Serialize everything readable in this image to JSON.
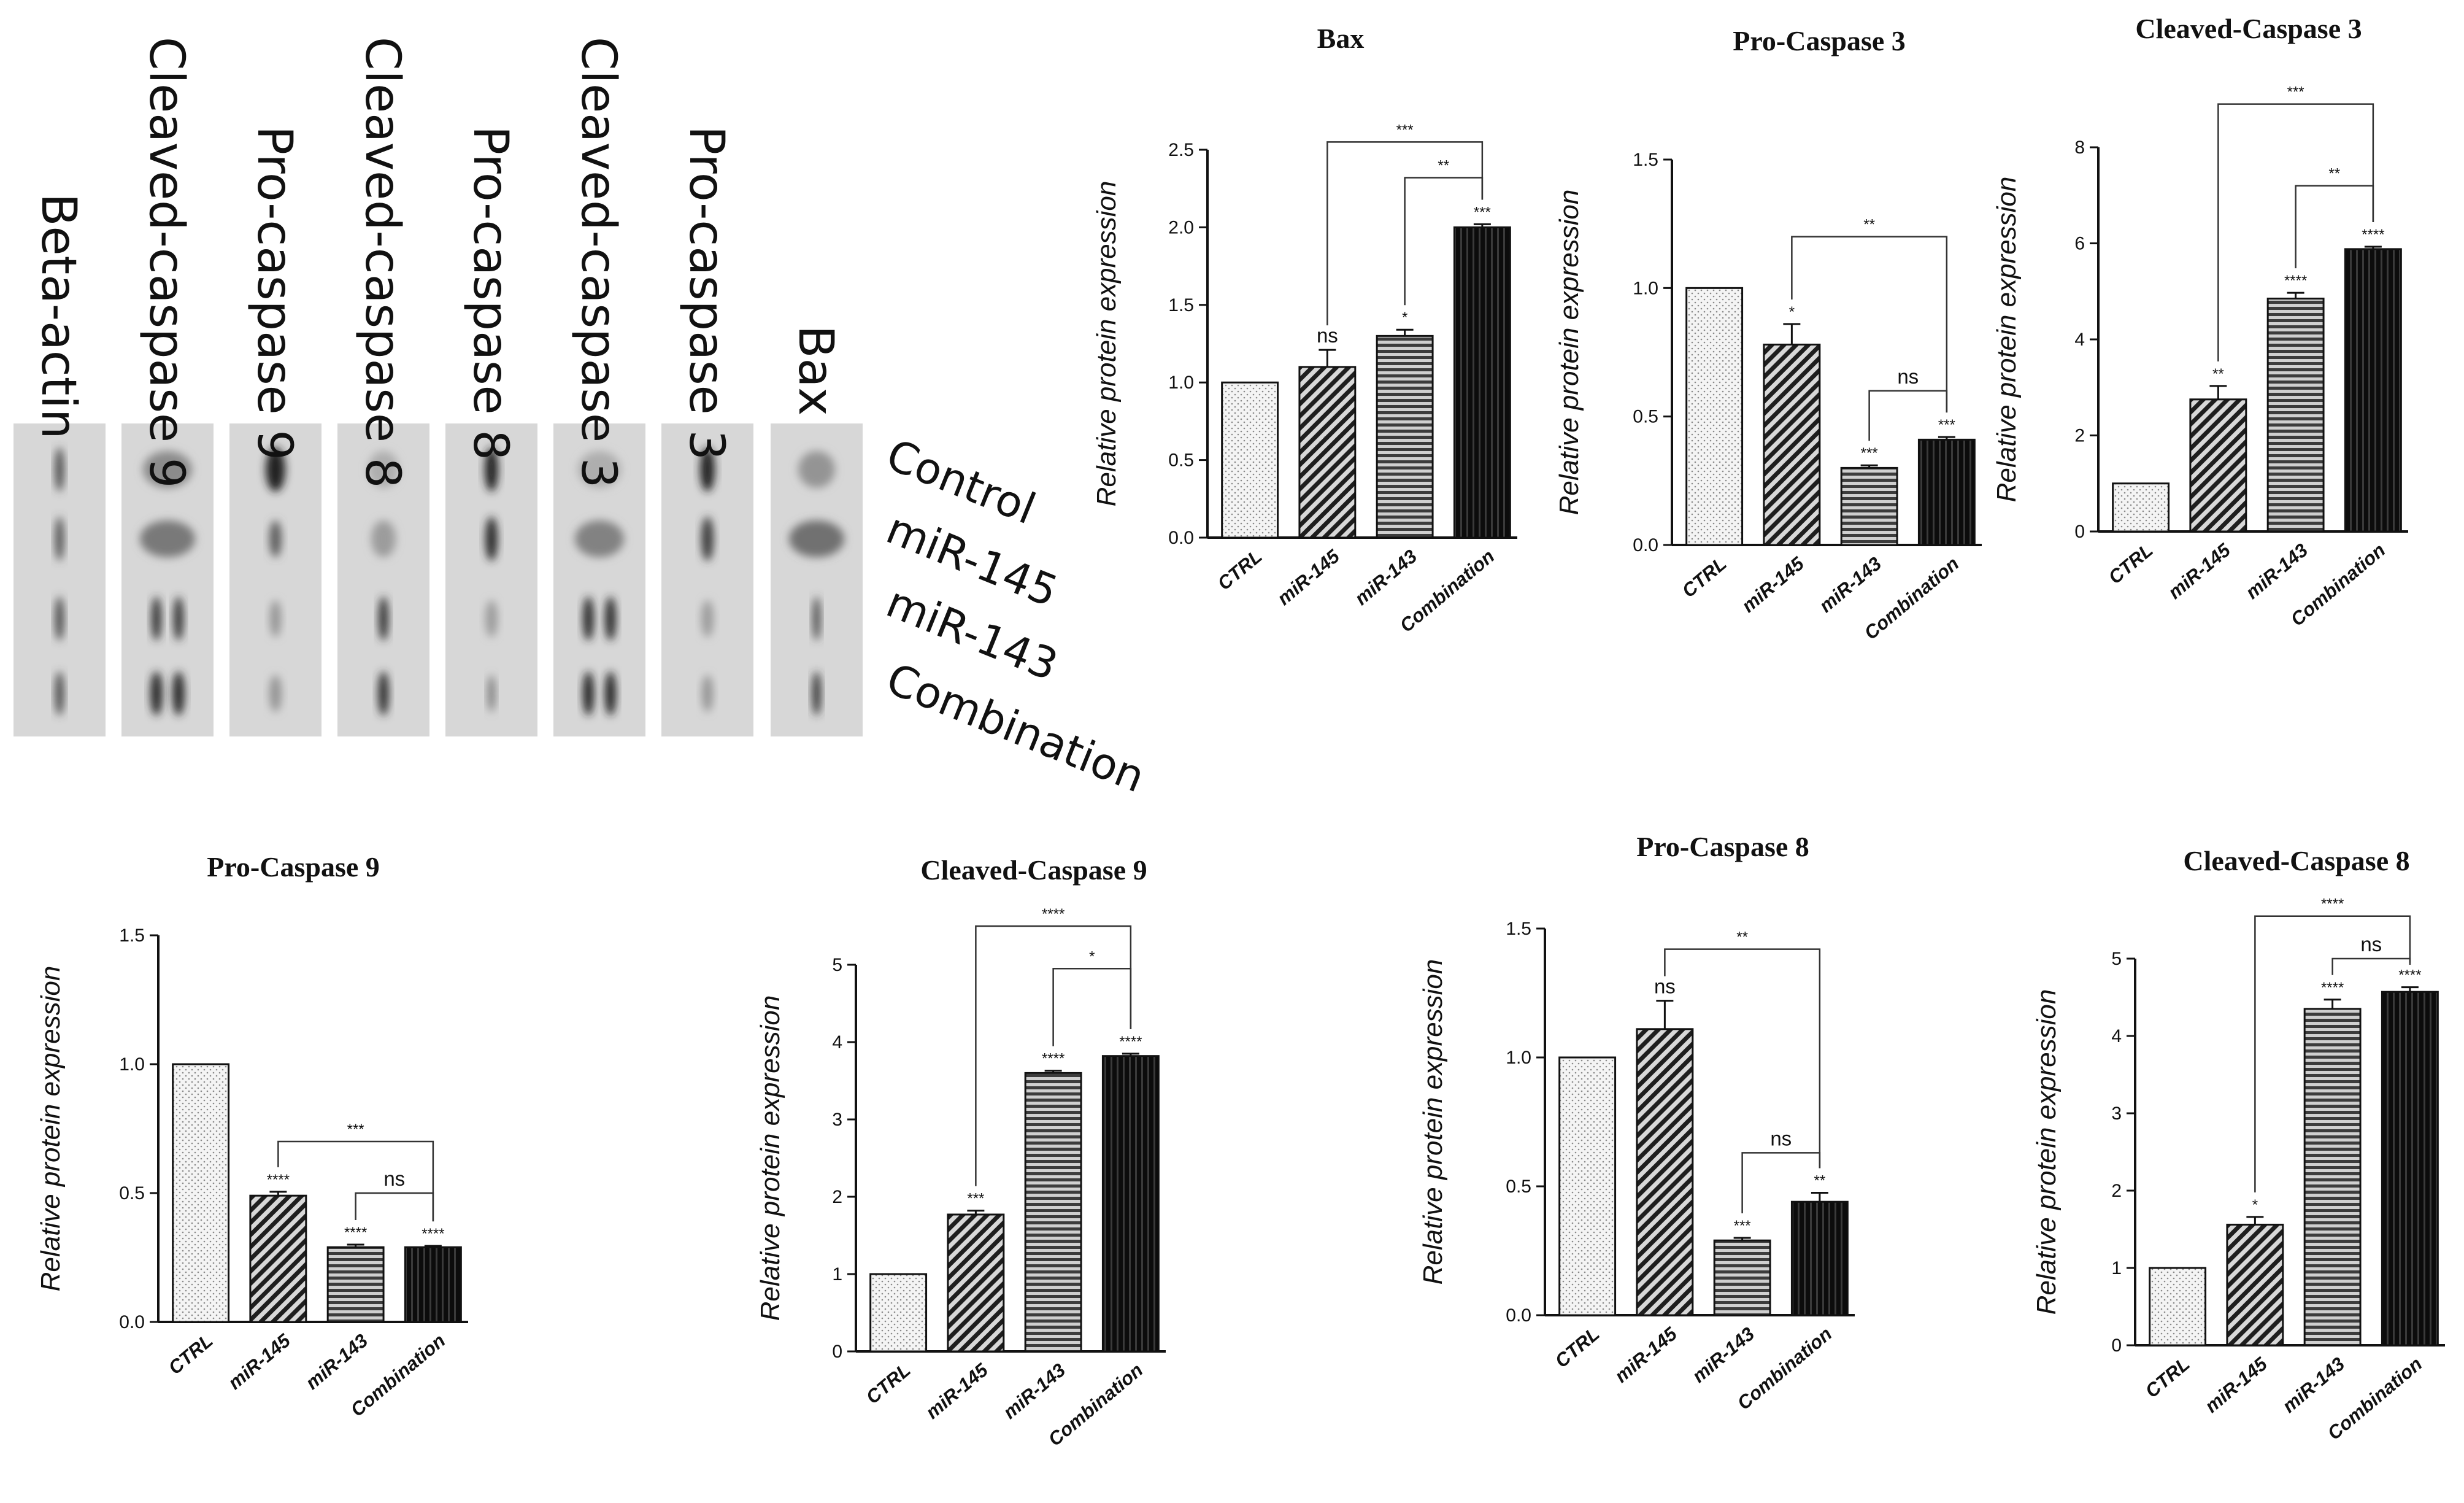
{
  "blot": {
    "columns": [
      "Beta-actin",
      "Cleaved-caspase 9",
      "Pro-caspase 9",
      "Cleaved-caspase 8",
      "Pro-caspase 8",
      "Cleaved-caspase 3",
      "Pro-caspase 3",
      "Bax"
    ],
    "rows": [
      "Control",
      "miR-145",
      "miR-143",
      "Combination"
    ]
  },
  "colors": {
    "ctrl": "#f2f2f2",
    "mir145": "#2f2f2f",
    "mir143": "#6a6a6a",
    "combo": "#0e0e0e",
    "blot_bg": "#d7d7d7"
  },
  "chart_data": [
    {
      "type": "bar",
      "title": "Bax",
      "categories": [
        "CTRL",
        "miR-145",
        "miR-143",
        "Combination"
      ],
      "values": [
        1.0,
        1.1,
        1.3,
        2.0
      ],
      "errors": [
        0,
        0.11,
        0.04,
        0.02
      ],
      "ylim": [
        0,
        2.5
      ],
      "yticks": [
        0.0,
        0.5,
        1.0,
        1.5,
        2.0,
        2.5
      ],
      "ytick_labels": [
        "0.0",
        "0.5",
        "1.0",
        "1.5",
        "2.0",
        "2.5"
      ],
      "ylabel": "Relative protein expression",
      "bar_sig": [
        "",
        "ns",
        "*",
        "***"
      ],
      "brackets": [
        {
          "from": 1,
          "to": 3,
          "label": "***",
          "y": 2.55
        },
        {
          "from": 2,
          "to": 3,
          "label": "**",
          "y": 2.32
        }
      ]
    },
    {
      "type": "bar",
      "title": "Pro-Caspase 3",
      "categories": [
        "CTRL",
        "miR-145",
        "miR-143",
        "Combination"
      ],
      "values": [
        1.0,
        0.78,
        0.3,
        0.41
      ],
      "errors": [
        0,
        0.08,
        0.01,
        0.01
      ],
      "ylim": [
        0,
        1.5
      ],
      "yticks": [
        0.0,
        0.5,
        1.0,
        1.5
      ],
      "ytick_labels": [
        "0.0",
        "0.5",
        "1.0",
        "1.5"
      ],
      "ylabel": "Relative protein expression",
      "bar_sig": [
        "",
        "*",
        "***",
        "***"
      ],
      "brackets": [
        {
          "from": 1,
          "to": 3,
          "label": "**",
          "y": 1.2
        },
        {
          "from": 2,
          "to": 3,
          "label": "ns",
          "y": 0.6
        }
      ]
    },
    {
      "type": "bar",
      "title": "Cleaved-Caspase 3",
      "categories": [
        "CTRL",
        "miR-145",
        "miR-143",
        "Combination"
      ],
      "values": [
        1.0,
        2.75,
        4.85,
        5.88
      ],
      "errors": [
        0,
        0.28,
        0.12,
        0.05
      ],
      "ylim": [
        0,
        8
      ],
      "yticks": [
        0,
        2,
        4,
        6,
        8
      ],
      "ytick_labels": [
        "0",
        "2",
        "4",
        "6",
        "8"
      ],
      "ylabel": "Relative protein expression",
      "bar_sig": [
        "",
        "**",
        "****",
        "****"
      ],
      "brackets": [
        {
          "from": 1,
          "to": 3,
          "label": "***",
          "y": 8.9
        },
        {
          "from": 2,
          "to": 3,
          "label": "**",
          "y": 7.2
        }
      ]
    },
    {
      "type": "bar",
      "title": "Pro-Caspase 9",
      "categories": [
        "CTRL",
        "miR-145",
        "miR-143",
        "Combination"
      ],
      "values": [
        1.0,
        0.49,
        0.29,
        0.29
      ],
      "errors": [
        0,
        0.015,
        0.01,
        0.005
      ],
      "ylim": [
        0,
        1.5
      ],
      "yticks": [
        0.0,
        0.5,
        1.0,
        1.5
      ],
      "ytick_labels": [
        "0.0",
        "0.5",
        "1.0",
        "1.5"
      ],
      "ylabel": "Relative protein expression",
      "bar_sig": [
        "",
        "****",
        "****",
        "****"
      ],
      "brackets": [
        {
          "from": 1,
          "to": 3,
          "label": "***",
          "y": 0.7
        },
        {
          "from": 2,
          "to": 3,
          "label": "ns",
          "y": 0.5
        }
      ]
    },
    {
      "type": "bar",
      "title": "Cleaved-Caspase 9",
      "categories": [
        "CTRL",
        "miR-145",
        "miR-143",
        "Combination"
      ],
      "values": [
        1.0,
        1.77,
        3.6,
        3.82
      ],
      "errors": [
        0,
        0.05,
        0.03,
        0.03
      ],
      "ylim": [
        0,
        5
      ],
      "yticks": [
        0,
        1,
        2,
        3,
        4,
        5
      ],
      "ytick_labels": [
        "0",
        "1",
        "2",
        "3",
        "4",
        "5"
      ],
      "ylabel": "Relative protein expression",
      "bar_sig": [
        "",
        "***",
        "****",
        "****"
      ],
      "brackets": [
        {
          "from": 1,
          "to": 3,
          "label": "****",
          "y": 5.5
        },
        {
          "from": 2,
          "to": 3,
          "label": "*",
          "y": 4.95
        }
      ]
    },
    {
      "type": "bar",
      "title": "Pro-Caspase 8",
      "categories": [
        "CTRL",
        "miR-145",
        "miR-143",
        "Combination"
      ],
      "values": [
        1.0,
        1.11,
        0.29,
        0.44
      ],
      "errors": [
        0,
        0.11,
        0.01,
        0.035
      ],
      "ylim": [
        0,
        1.5
      ],
      "yticks": [
        0.0,
        0.5,
        1.0,
        1.5
      ],
      "ytick_labels": [
        "0.0",
        "0.5",
        "1.0",
        "1.5"
      ],
      "ylabel": "Relative protein expression",
      "bar_sig": [
        "",
        "ns",
        "***",
        "**"
      ],
      "brackets": [
        {
          "from": 1,
          "to": 3,
          "label": "**",
          "y": 1.42
        },
        {
          "from": 2,
          "to": 3,
          "label": "ns",
          "y": 0.63
        }
      ]
    },
    {
      "type": "bar",
      "title": "Cleaved-Caspase 8",
      "categories": [
        "CTRL",
        "miR-145",
        "miR-143",
        "Combination"
      ],
      "values": [
        1.0,
        1.56,
        4.35,
        4.57
      ],
      "errors": [
        0,
        0.1,
        0.12,
        0.06
      ],
      "ylim": [
        0,
        5
      ],
      "yticks": [
        0,
        1,
        2,
        3,
        4,
        5
      ],
      "ytick_labels": [
        "0",
        "1",
        "2",
        "3",
        "4",
        "5"
      ],
      "ylabel": "Relative protein expression",
      "bar_sig": [
        "",
        "*",
        "****",
        "****"
      ],
      "brackets": [
        {
          "from": 1,
          "to": 3,
          "label": "****",
          "y": 5.55
        },
        {
          "from": 2,
          "to": 3,
          "label": "ns",
          "y": 5.0
        }
      ]
    }
  ]
}
